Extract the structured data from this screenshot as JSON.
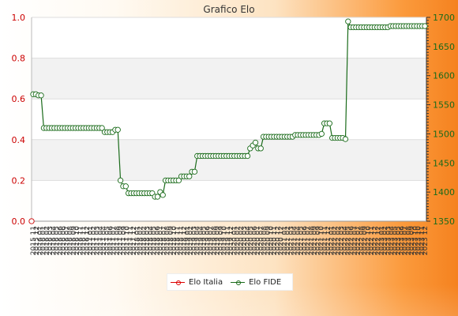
{
  "chart_data": {
    "type": "line",
    "title": "Grafico Elo",
    "left_axis": {
      "ylim": [
        0,
        1
      ],
      "ticks": [
        "0.0",
        "0.2",
        "0.4",
        "0.6",
        "0.8",
        "1.0"
      ]
    },
    "right_axis": {
      "ylim": [
        1350,
        1700
      ],
      "ticks": [
        "1350",
        "1400",
        "1450",
        "1500",
        "1550",
        "1600",
        "1650",
        "1700"
      ]
    },
    "x_first_label": "2015 11",
    "x_last_label": "2023 12",
    "series": [
      {
        "name": "Elo Italia",
        "axis": "left",
        "color": "#cc0000",
        "values": [
          0
        ]
      },
      {
        "name": "Elo FIDE",
        "axis": "right",
        "color": "#1a6b1a",
        "values": [
          1568,
          1568,
          1566,
          1566,
          1510,
          1510,
          1510,
          1510,
          1510,
          1510,
          1510,
          1510,
          1510,
          1510,
          1510,
          1510,
          1510,
          1510,
          1510,
          1510,
          1510,
          1510,
          1510,
          1510,
          1510,
          1510,
          1510,
          1503,
          1503,
          1503,
          1503,
          1507,
          1507,
          1420,
          1410,
          1410,
          1398,
          1398,
          1398,
          1398,
          1398,
          1398,
          1398,
          1398,
          1398,
          1398,
          1392,
          1392,
          1400,
          1395,
          1420,
          1420,
          1420,
          1420,
          1420,
          1420,
          1427,
          1427,
          1427,
          1427,
          1435,
          1435,
          1462,
          1462,
          1462,
          1462,
          1462,
          1462,
          1462,
          1462,
          1462,
          1462,
          1462,
          1462,
          1462,
          1462,
          1462,
          1462,
          1462,
          1462,
          1462,
          1462,
          1475,
          1480,
          1485,
          1475,
          1475,
          1495,
          1495,
          1495,
          1495,
          1495,
          1495,
          1495,
          1495,
          1495,
          1495,
          1495,
          1495,
          1498,
          1498,
          1498,
          1498,
          1498,
          1498,
          1498,
          1498,
          1498,
          1498,
          1500,
          1518,
          1518,
          1518,
          1493,
          1493,
          1493,
          1493,
          1493,
          1491,
          1693,
          1683,
          1683,
          1683,
          1683,
          1683,
          1683,
          1683,
          1683,
          1683,
          1683,
          1683,
          1683,
          1683,
          1683,
          1683,
          1685,
          1685,
          1685,
          1685,
          1685,
          1685,
          1685,
          1685,
          1685,
          1685,
          1685,
          1685,
          1685,
          1685
        ]
      }
    ],
    "legend": {
      "position": "bottom-center",
      "entries": [
        "Elo Italia",
        "Elo FIDE"
      ]
    },
    "grid": true
  }
}
